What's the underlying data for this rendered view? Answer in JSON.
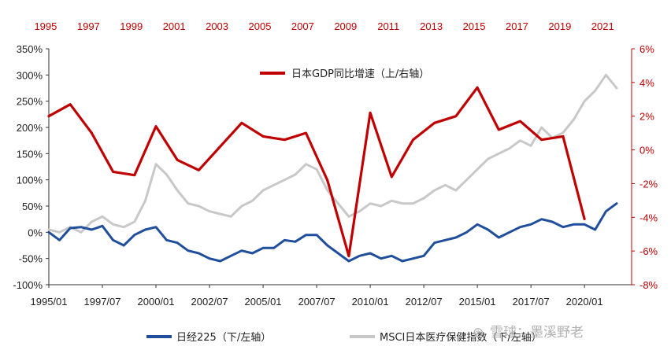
{
  "colors": {
    "gdp": "#c00000",
    "nikkei": "#1f4e9c",
    "msci": "#c8c8c8",
    "axis": "#333333",
    "right_axis": "#c00000"
  },
  "chart_data": {
    "type": "line",
    "top_axis_labels": [
      "1995",
      "1997",
      "1999",
      "2001",
      "2003",
      "2005",
      "2007",
      "2009",
      "2011",
      "2013",
      "2015",
      "2017",
      "2019",
      "2021"
    ],
    "bottom_axis_labels": [
      "1995/01",
      "1997/07",
      "2000/01",
      "2002/07",
      "2005/01",
      "2007/07",
      "2010/01",
      "2012/07",
      "2015/01",
      "2017/07",
      "2020/01"
    ],
    "left_axis": {
      "ticks": [
        "350%",
        "300%",
        "250%",
        "200%",
        "150%",
        "100%",
        "50%",
        "0%",
        "-50%",
        "-100%"
      ],
      "ylim": [
        -100,
        350
      ]
    },
    "right_axis": {
      "ticks": [
        "6%",
        "4%",
        "2%",
        "0%",
        "-2%",
        "-4%",
        "-6%",
        "-8%"
      ],
      "ylim": [
        -8,
        6
      ]
    },
    "legend": {
      "gdp": "日本GDP同比增速（上/右轴）",
      "nikkei": "日经225（下/左轴）",
      "msci": "MSCI日本医疗保健指数（下/左轴）"
    },
    "series": [
      {
        "name": "日本GDP同比增速（上/右轴）",
        "axis": "right",
        "x": [
          1995,
          1996,
          1997,
          1998,
          1999,
          2000,
          2001,
          2002,
          2003,
          2004,
          2005,
          2006,
          2007,
          2008,
          2009,
          2010,
          2011,
          2012,
          2013,
          2014,
          2015,
          2016,
          2017,
          2018,
          2019,
          2020
        ],
        "values": [
          2.0,
          2.7,
          1.0,
          -1.3,
          -1.5,
          1.4,
          -0.6,
          -1.2,
          0.2,
          1.6,
          0.8,
          0.6,
          1.0,
          -1.8,
          -6.3,
          2.2,
          -1.6,
          0.6,
          1.6,
          2.0,
          3.7,
          1.2,
          1.7,
          0.6,
          0.8,
          -4.1
        ]
      },
      {
        "name": "日经225（下/左轴）",
        "axis": "left",
        "x": [
          1995.0,
          1995.5,
          1996.0,
          1996.5,
          1997.0,
          1997.5,
          1998.0,
          1998.5,
          1999.0,
          1999.5,
          2000.0,
          2000.5,
          2001.0,
          2001.5,
          2002.0,
          2002.5,
          2003.0,
          2003.5,
          2004.0,
          2004.5,
          2005.0,
          2005.5,
          2006.0,
          2006.5,
          2007.0,
          2007.5,
          2008.0,
          2008.5,
          2009.0,
          2009.5,
          2010.0,
          2010.5,
          2011.0,
          2011.5,
          2012.0,
          2012.5,
          2013.0,
          2013.5,
          2014.0,
          2014.5,
          2015.0,
          2015.5,
          2016.0,
          2016.5,
          2017.0,
          2017.5,
          2018.0,
          2018.5,
          2019.0,
          2019.5,
          2020.0,
          2020.5,
          2021.0,
          2021.5
        ],
        "values": [
          0,
          -15,
          8,
          10,
          5,
          12,
          -15,
          -25,
          -5,
          5,
          10,
          -15,
          -20,
          -35,
          -40,
          -50,
          -55,
          -45,
          -35,
          -40,
          -30,
          -30,
          -15,
          -18,
          -5,
          -5,
          -25,
          -40,
          -55,
          -45,
          -40,
          -50,
          -45,
          -55,
          -50,
          -45,
          -20,
          -15,
          -10,
          0,
          15,
          5,
          -10,
          0,
          10,
          15,
          25,
          20,
          10,
          15,
          15,
          5,
          40,
          55
        ]
      },
      {
        "name": "MSCI日本医疗保健指数（下/左轴）",
        "axis": "left",
        "x": [
          1995.0,
          1995.5,
          1996.0,
          1996.5,
          1997.0,
          1997.5,
          1998.0,
          1998.5,
          1999.0,
          1999.5,
          2000.0,
          2000.5,
          2001.0,
          2001.5,
          2002.0,
          2002.5,
          2003.0,
          2003.5,
          2004.0,
          2004.5,
          2005.0,
          2005.5,
          2006.0,
          2006.5,
          2007.0,
          2007.5,
          2008.0,
          2008.5,
          2009.0,
          2009.5,
          2010.0,
          2010.5,
          2011.0,
          2011.5,
          2012.0,
          2012.5,
          2013.0,
          2013.5,
          2014.0,
          2014.5,
          2015.0,
          2015.5,
          2016.0,
          2016.5,
          2017.0,
          2017.5,
          2018.0,
          2018.5,
          2019.0,
          2019.5,
          2020.0,
          2020.5,
          2021.0,
          2021.5
        ],
        "values": [
          5,
          0,
          10,
          0,
          20,
          30,
          15,
          10,
          20,
          60,
          130,
          110,
          80,
          55,
          50,
          40,
          35,
          30,
          50,
          60,
          80,
          90,
          100,
          110,
          130,
          120,
          80,
          55,
          30,
          40,
          55,
          50,
          60,
          55,
          55,
          65,
          80,
          90,
          80,
          100,
          120,
          140,
          150,
          160,
          175,
          165,
          200,
          180,
          190,
          215,
          250,
          270,
          300,
          275
        ]
      }
    ]
  },
  "watermark": {
    "symbol": "⊛",
    "text": "雪球：墨溪野老"
  }
}
